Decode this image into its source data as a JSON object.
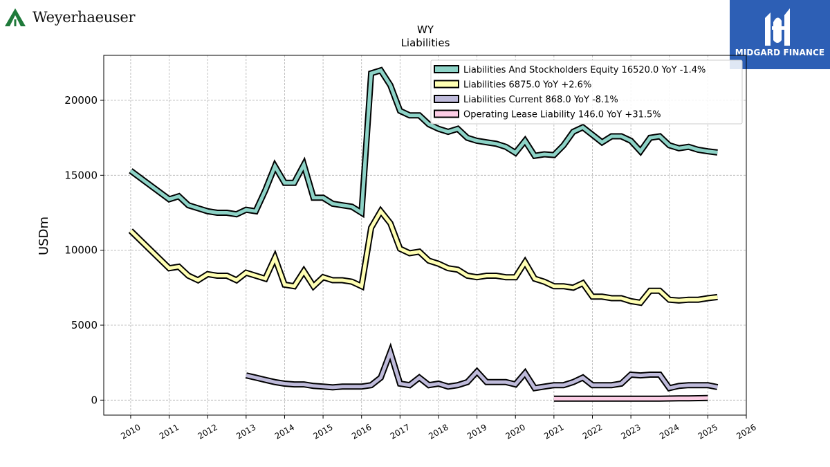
{
  "brand": {
    "left_logo_text": "Weyerhaeuser",
    "right_logo_text": "MIDGARD FINANCE",
    "left_logo_color": "#1f7a3a",
    "right_box_color": "#2d5fb5"
  },
  "chart_data": {
    "type": "line",
    "title": "WY",
    "subtitle": "Liabilities",
    "xlabel": "",
    "ylabel": "USDm",
    "xlim": [
      2009.3,
      2026.0
    ],
    "ylim": [
      -1000,
      23000
    ],
    "x_ticks": [
      "2010",
      "2011",
      "2012",
      "2013",
      "2014",
      "2015",
      "2016",
      "2017",
      "2018",
      "2019",
      "2020",
      "2021",
      "2022",
      "2023",
      "2024",
      "2025",
      "2026"
    ],
    "y_ticks": [
      0,
      5000,
      10000,
      15000,
      20000
    ],
    "grid": true,
    "legend_position": "top-right",
    "series": [
      {
        "name": "Liabilities And Stockholders Equity",
        "legend": "Liabilities And Stockholders Equity  16520.0 YoY -1.4%",
        "color": "#8dd3c7",
        "x": [
          2010.0,
          2011.0,
          2011.25,
          2011.5,
          2011.75,
          2012.0,
          2012.25,
          2012.5,
          2012.75,
          2013.0,
          2013.25,
          2013.5,
          2013.75,
          2014.0,
          2014.25,
          2014.5,
          2014.75,
          2015.0,
          2015.25,
          2015.5,
          2015.75,
          2016.0,
          2016.25,
          2016.5,
          2016.75,
          2017.0,
          2017.25,
          2017.5,
          2017.75,
          2018.0,
          2018.25,
          2018.5,
          2018.75,
          2019.0,
          2019.25,
          2019.5,
          2019.75,
          2020.0,
          2020.25,
          2020.5,
          2020.75,
          2021.0,
          2021.25,
          2021.5,
          2021.75,
          2022.0,
          2022.25,
          2022.5,
          2022.75,
          2023.0,
          2023.25,
          2023.5,
          2023.75,
          2024.0,
          2024.25,
          2024.5,
          2024.75,
          2025.0,
          2025.25
        ],
        "y": [
          15300,
          13400,
          13600,
          13000,
          12800,
          12600,
          12500,
          12500,
          12400,
          12700,
          12600,
          14000,
          15600,
          14500,
          14500,
          15700,
          13500,
          13500,
          13100,
          13000,
          12900,
          12500,
          21800,
          22000,
          21000,
          19300,
          19000,
          19000,
          18400,
          18100,
          17900,
          18100,
          17500,
          17300,
          17200,
          17100,
          16900,
          16500,
          17300,
          16300,
          16400,
          16350,
          17000,
          17900,
          18200,
          17700,
          17200,
          17600,
          17600,
          17300,
          16600,
          17500,
          17600,
          17000,
          16800,
          16900,
          16700,
          16600,
          16520
        ]
      },
      {
        "name": "Liabilities",
        "legend": "Liabilities  6875.0 YoY +2.6%",
        "color": "#ffffb3",
        "x": [
          2010.0,
          2011.0,
          2011.25,
          2011.5,
          2011.75,
          2012.0,
          2012.25,
          2012.5,
          2012.75,
          2013.0,
          2013.25,
          2013.5,
          2013.75,
          2014.0,
          2014.25,
          2014.5,
          2014.75,
          2015.0,
          2015.25,
          2015.5,
          2015.75,
          2016.0,
          2016.25,
          2016.5,
          2016.75,
          2017.0,
          2017.25,
          2017.5,
          2017.75,
          2018.0,
          2018.25,
          2018.5,
          2018.75,
          2019.0,
          2019.25,
          2019.5,
          2019.75,
          2020.0,
          2020.25,
          2020.5,
          2020.75,
          2021.0,
          2021.25,
          2021.5,
          2021.75,
          2022.0,
          2022.25,
          2022.5,
          2022.75,
          2023.0,
          2023.25,
          2023.5,
          2023.75,
          2024.0,
          2024.25,
          2024.5,
          2024.75,
          2025.0,
          2025.25
        ],
        "y": [
          11300,
          8800,
          8900,
          8300,
          8000,
          8400,
          8300,
          8300,
          8000,
          8500,
          8300,
          8100,
          9500,
          7700,
          7600,
          8600,
          7600,
          8200,
          8000,
          8000,
          7900,
          7600,
          11500,
          12600,
          11800,
          10100,
          9800,
          9900,
          9300,
          9100,
          8800,
          8700,
          8300,
          8200,
          8300,
          8300,
          8200,
          8200,
          9200,
          8100,
          7900,
          7600,
          7600,
          7500,
          7800,
          6900,
          6900,
          6800,
          6800,
          6600,
          6500,
          7300,
          7300,
          6700,
          6650,
          6700,
          6700,
          6800,
          6875
        ]
      },
      {
        "name": "Liabilities Current",
        "legend": "Liabilities Current  868.0 YoY -8.1%",
        "color": "#bebada",
        "x": [
          2013.0,
          2013.25,
          2013.5,
          2013.75,
          2014.0,
          2014.25,
          2014.5,
          2014.75,
          2015.0,
          2015.25,
          2015.5,
          2015.75,
          2016.0,
          2016.25,
          2016.5,
          2016.75,
          2017.0,
          2017.25,
          2017.5,
          2017.75,
          2018.0,
          2018.25,
          2018.5,
          2018.75,
          2019.0,
          2019.25,
          2019.5,
          2019.75,
          2020.0,
          2020.25,
          2020.5,
          2020.75,
          2021.0,
          2021.25,
          2021.5,
          2021.75,
          2022.0,
          2022.25,
          2022.5,
          2022.75,
          2023.0,
          2023.25,
          2023.5,
          2023.75,
          2024.0,
          2024.25,
          2024.5,
          2024.75,
          2025.0,
          2025.25
        ],
        "y": [
          1650,
          1500,
          1350,
          1200,
          1100,
          1050,
          1050,
          950,
          900,
          850,
          900,
          900,
          900,
          1000,
          1500,
          3200,
          1100,
          1000,
          1500,
          1000,
          1100,
          900,
          1000,
          1200,
          1900,
          1200,
          1200,
          1200,
          1050,
          1800,
          800,
          900,
          1000,
          1000,
          1200,
          1500,
          1000,
          1000,
          1000,
          1100,
          1700,
          1650,
          1700,
          1700,
          800,
          950,
          1000,
          1000,
          1000,
          868
        ]
      },
      {
        "name": "Operating Lease Liability",
        "legend": "Operating Lease Liability  146.0 YoY +31.5%",
        "color": "#fccde5",
        "x": [
          2021.0,
          2021.25,
          2021.5,
          2021.75,
          2022.0,
          2022.25,
          2022.5,
          2022.75,
          2023.0,
          2023.25,
          2023.5,
          2023.75,
          2024.0,
          2024.25,
          2024.5,
          2024.75,
          2025.0
        ],
        "y": [
          100,
          100,
          100,
          100,
          100,
          100,
          100,
          100,
          100,
          100,
          100,
          100,
          110,
          115,
          120,
          130,
          146
        ]
      }
    ]
  }
}
